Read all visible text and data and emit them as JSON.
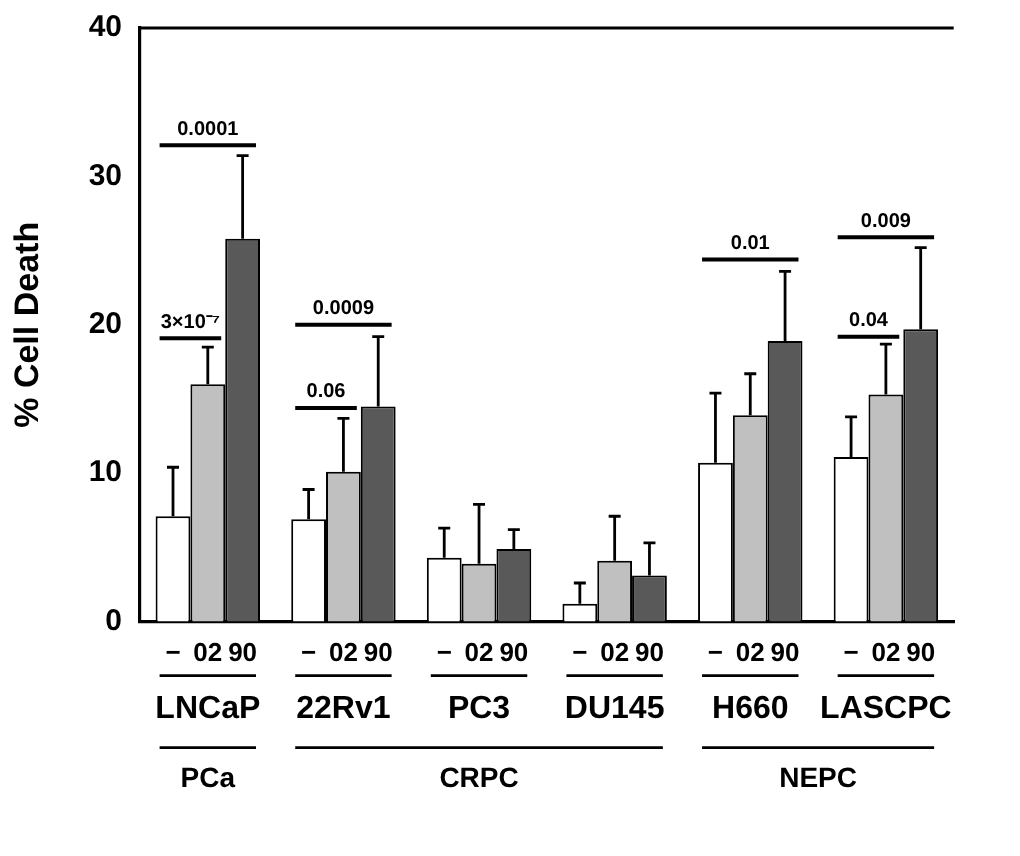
{
  "chart_data": {
    "type": "bar",
    "ylabel": "% Cell Death",
    "categories": [
      "LNCaP",
      "22Rv1",
      "PC3",
      "DU145",
      "H660",
      "LASCPC"
    ],
    "series": [
      {
        "name": "−",
        "color": "#ffffff",
        "values": [
          7.1,
          6.9,
          4.3,
          1.2,
          10.7,
          11.1
        ],
        "errors": [
          3.3,
          2.0,
          2.0,
          1.4,
          4.7,
          2.7
        ]
      },
      {
        "name": "02",
        "color": "#c0c0c0",
        "values": [
          16.0,
          10.1,
          3.9,
          4.1,
          13.9,
          15.3
        ],
        "errors": [
          2.5,
          3.6,
          4.0,
          3.0,
          2.8,
          3.4
        ]
      },
      {
        "name": "90",
        "color": "#595959",
        "values": [
          25.8,
          14.5,
          4.9,
          3.1,
          18.9,
          19.7
        ],
        "errors": [
          5.6,
          4.7,
          1.3,
          2.2,
          4.7,
          5.5
        ]
      }
    ],
    "ylim": [
      0,
      40
    ],
    "yticks": [
      0,
      10,
      20,
      30,
      40
    ],
    "grid": false,
    "annotations": [
      "0.0001",
      "3×10⁻⁷",
      "0.0009",
      "0.06",
      "0.01",
      "0.04",
      "0.009",
      "PCa",
      "CRPC",
      "NEPC"
    ]
  }
}
